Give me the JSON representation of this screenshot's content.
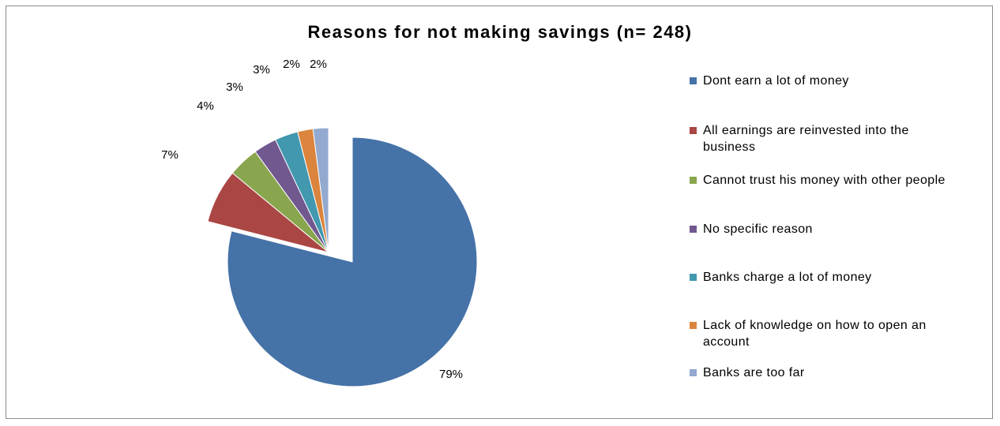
{
  "chart_data": {
    "type": "pie",
    "title": "Reasons for not making savings (n= 248)",
    "exploded": true,
    "legend_position": "right",
    "slices": [
      {
        "label": "Dont earn a lot of money",
        "value": 79,
        "display": "79%",
        "color": "#4572A7"
      },
      {
        "label": "All earnings are reinvested into the business",
        "value": 7,
        "display": "7%",
        "color": "#AA4643"
      },
      {
        "label": "Cannot trust his money with other people",
        "value": 4,
        "display": "4%",
        "color": "#89A54E"
      },
      {
        "label": "No specific reason",
        "value": 3,
        "display": "3%",
        "color": "#71588F"
      },
      {
        "label": "Banks charge a lot of money",
        "value": 3,
        "display": "3%",
        "color": "#4198AF"
      },
      {
        "label": "Lack of knowledge on how to open an account",
        "value": 2,
        "display": "2%",
        "color": "#DB843D"
      },
      {
        "label": "Banks are too far",
        "value": 2,
        "display": "2%",
        "color": "#93A9CF"
      }
    ]
  }
}
